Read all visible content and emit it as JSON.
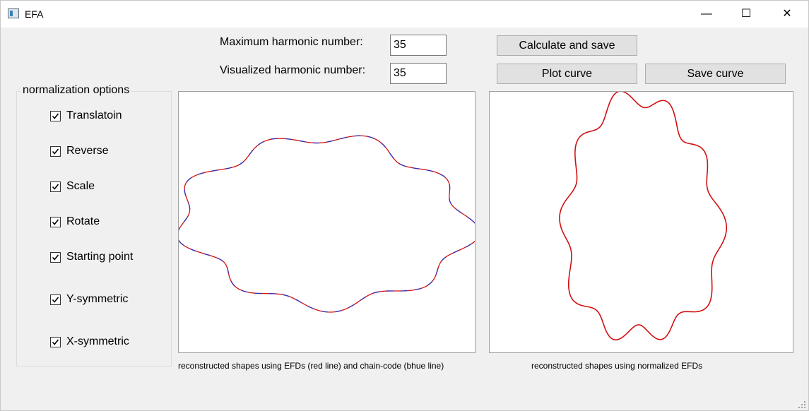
{
  "window": {
    "title": "EFA",
    "controls": {
      "minimize": "—",
      "maximize": "☐",
      "close": "✕"
    }
  },
  "form": {
    "max_harmonic_label": "Maximum harmonic number:",
    "max_harmonic_value": "35",
    "vis_harmonic_label": "Visualized harmonic number:",
    "vis_harmonic_value": "35",
    "calculate_button": "Calculate and save",
    "plot_button": "Plot curve",
    "save_button": "Save curve"
  },
  "normalization": {
    "title": "normalization options",
    "options": [
      {
        "label": "Translatoin",
        "checked": true
      },
      {
        "label": "Reverse",
        "checked": true
      },
      {
        "label": "Scale",
        "checked": true
      },
      {
        "label": "Rotate",
        "checked": true
      },
      {
        "label": "Starting point",
        "checked": true
      },
      {
        "label": "Y-symmetric",
        "checked": true
      },
      {
        "label": "X-symmetric",
        "checked": true
      }
    ]
  },
  "plots": {
    "left_caption": "reconstructed shapes using EFDs (red line) and chain-code (bhue line)",
    "right_caption": "reconstructed shapes using normalized EFDs",
    "efd_color": "#d01010",
    "chain_color": "#3030c0"
  }
}
